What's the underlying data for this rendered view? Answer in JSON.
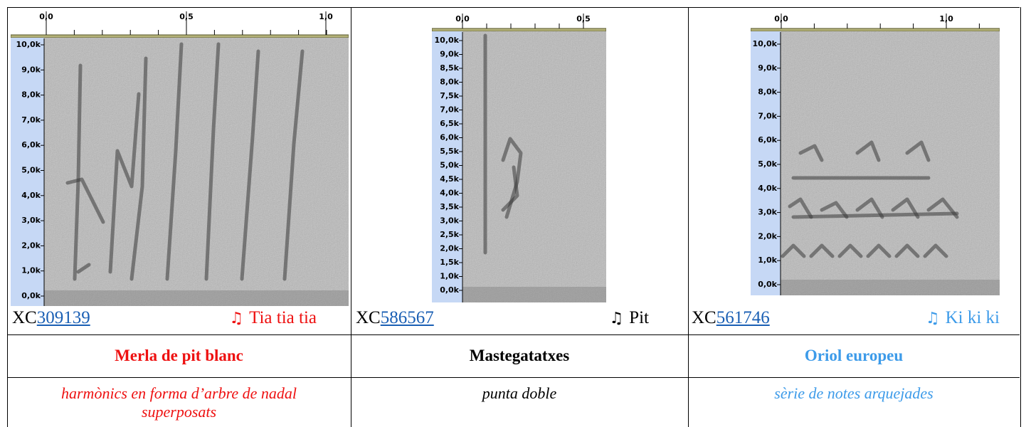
{
  "columns": [
    {
      "time_ticks": [
        "0,0",
        "0,5",
        "1,0"
      ],
      "freq_ticks": [
        "10,0k",
        "9,0k",
        "8,0k",
        "7,0k",
        "6,0k",
        "5,0k",
        "4,0k",
        "3,0k",
        "2,0k",
        "1,0k",
        "0,0k"
      ],
      "xc_prefix": "XC",
      "xc_id": "309139",
      "note": "♫",
      "song": "Tia tia tia",
      "name": "Merla de pit blanc",
      "description": "harmònics en forma d’arbre de nadal superposats",
      "color": "#ee1111"
    },
    {
      "time_ticks": [
        "0,0",
        "0,5"
      ],
      "freq_ticks": [
        "10,0k",
        "9,0k",
        "8,5k",
        "8,0k",
        "7,5k",
        "7,0k",
        "6,5k",
        "6,0k",
        "5,5k",
        "5,0k",
        "4,5k",
        "4,0k",
        "3,5k",
        "3,0k",
        "2,5k",
        "2,0k",
        "1,5k",
        "1,0k",
        "0,0k"
      ],
      "xc_prefix": "XC",
      "xc_id": "586567",
      "note": "♫",
      "song": "Pit",
      "name": "Mastegatatxes",
      "description": "punta doble",
      "color": "#000000"
    },
    {
      "time_ticks": [
        "0,0",
        "1,0"
      ],
      "freq_ticks": [
        "10,0k",
        "9,0k",
        "8,0k",
        "7,0k",
        "6,0k",
        "5,0k",
        "4,0k",
        "3,0k",
        "2,0k",
        "1,0k",
        "0,0k"
      ],
      "xc_prefix": "XC",
      "xc_id": "561746",
      "note": "♫",
      "song": "Ki ki ki",
      "name": "Oriol europeu",
      "description": "sèrie de notes arquejades",
      "color": "#3d9be9"
    }
  ]
}
